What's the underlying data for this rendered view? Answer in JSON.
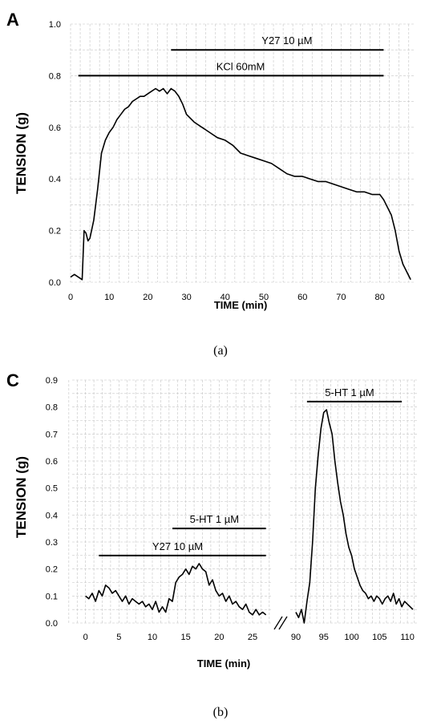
{
  "chart_data": [
    {
      "type": "line",
      "panel": "A",
      "caption": "(a)",
      "xlabel": "TIME (min)",
      "ylabel": "TENSION (g)",
      "xlim": [
        0,
        89
      ],
      "ylim": [
        0,
        1.0
      ],
      "xticks": [
        "0",
        "10",
        "20",
        "30",
        "40",
        "50",
        "60",
        "70",
        "80"
      ],
      "yticks": [
        "0.0",
        "0.2",
        "0.4",
        "0.6",
        "0.8",
        "1.0"
      ],
      "grid": true,
      "annotations": [
        {
          "label": "Y27 10 µM",
          "x_start": 26,
          "x_end": 81,
          "y": 0.9
        },
        {
          "label": "KCl 60mM",
          "x_start": 2,
          "x_end": 81,
          "y": 0.8
        }
      ],
      "series": [
        {
          "x": [
            0,
            1,
            2,
            3,
            3.5,
            4,
            4.5,
            5,
            6,
            7,
            8,
            9,
            10,
            11,
            12,
            13,
            14,
            15,
            16,
            17,
            18,
            19,
            20,
            21,
            22,
            23,
            24,
            25,
            26,
            27,
            28,
            29,
            30,
            32,
            34,
            36,
            38,
            40,
            42,
            44,
            46,
            48,
            50,
            52,
            54,
            56,
            58,
            60,
            62,
            64,
            66,
            68,
            70,
            72,
            74,
            76,
            78,
            79,
            80,
            81,
            82,
            83,
            84,
            85,
            86,
            87,
            88
          ],
          "y": [
            0.02,
            0.03,
            0.02,
            0.01,
            0.2,
            0.19,
            0.16,
            0.17,
            0.24,
            0.36,
            0.5,
            0.55,
            0.58,
            0.6,
            0.63,
            0.65,
            0.67,
            0.68,
            0.7,
            0.71,
            0.72,
            0.72,
            0.73,
            0.74,
            0.75,
            0.74,
            0.75,
            0.73,
            0.75,
            0.74,
            0.72,
            0.69,
            0.65,
            0.62,
            0.6,
            0.58,
            0.56,
            0.55,
            0.53,
            0.5,
            0.49,
            0.48,
            0.47,
            0.46,
            0.44,
            0.42,
            0.41,
            0.41,
            0.4,
            0.39,
            0.39,
            0.38,
            0.37,
            0.36,
            0.35,
            0.35,
            0.34,
            0.34,
            0.34,
            0.32,
            0.29,
            0.26,
            0.2,
            0.12,
            0.07,
            0.04,
            0.01
          ]
        }
      ]
    },
    {
      "type": "line",
      "panel": "C",
      "caption": "(b)",
      "xlabel": "TIME (min)",
      "ylabel": "TENSION (g)",
      "ylim": [
        0,
        0.9
      ],
      "yticks": [
        "0.0",
        "0.1",
        "0.2",
        "0.3",
        "0.4",
        "0.5",
        "0.6",
        "0.7",
        "0.8",
        "0.9"
      ],
      "grid": true,
      "axis_break": true,
      "segments": [
        {
          "xlim": [
            -2,
            28
          ],
          "xticks": [
            "0",
            "5",
            "10",
            "15",
            "20",
            "25"
          ]
        },
        {
          "xlim": [
            89,
            112
          ],
          "xticks": [
            "90",
            "95",
            "100",
            "105",
            "110"
          ]
        }
      ],
      "annotations": [
        {
          "label": "5-HT 1 µM",
          "x_start": 92,
          "x_end": 109,
          "y": 0.82
        },
        {
          "label": "5-HT 1 µM",
          "x_start": 13,
          "x_end": 27,
          "y": 0.35
        },
        {
          "label": "Y27 10 µM",
          "x_start": 2,
          "x_end": 27,
          "y": 0.25
        }
      ],
      "series": [
        {
          "x": [
            0,
            0.5,
            1,
            1.5,
            2,
            2.5,
            3,
            3.5,
            4,
            4.5,
            5,
            5.5,
            6,
            6.5,
            7,
            7.5,
            8,
            8.5,
            9,
            9.5,
            10,
            10.5,
            11,
            11.5,
            12,
            12.5,
            13,
            13.5,
            14,
            14.5,
            15,
            15.5,
            16,
            16.5,
            17,
            17.5,
            18,
            18.5,
            19,
            19.5,
            20,
            20.5,
            21,
            21.5,
            22,
            22.5,
            23,
            23.5,
            24,
            24.5,
            25,
            25.5,
            26,
            26.5,
            27
          ],
          "y": [
            0.1,
            0.09,
            0.11,
            0.08,
            0.12,
            0.1,
            0.14,
            0.13,
            0.11,
            0.12,
            0.1,
            0.08,
            0.1,
            0.07,
            0.09,
            0.08,
            0.07,
            0.08,
            0.06,
            0.07,
            0.05,
            0.08,
            0.04,
            0.06,
            0.04,
            0.09,
            0.08,
            0.15,
            0.17,
            0.18,
            0.2,
            0.18,
            0.21,
            0.2,
            0.22,
            0.2,
            0.19,
            0.14,
            0.16,
            0.12,
            0.1,
            0.11,
            0.08,
            0.1,
            0.07,
            0.08,
            0.06,
            0.05,
            0.07,
            0.04,
            0.03,
            0.05,
            0.03,
            0.04,
            0.03
          ]
        },
        {
          "x": [
            90,
            90.5,
            91,
            91.5,
            92,
            92.5,
            93,
            93.5,
            94,
            94.5,
            95,
            95.5,
            96,
            96.5,
            97,
            97.5,
            98,
            98.5,
            99,
            99.5,
            100,
            100.5,
            101,
            101.5,
            102,
            102.5,
            103,
            103.5,
            104,
            104.5,
            105,
            105.5,
            106,
            106.5,
            107,
            107.5,
            108,
            108.5,
            109,
            109.5,
            110,
            110.5,
            111
          ],
          "y": [
            0.04,
            0.02,
            0.05,
            0.0,
            0.08,
            0.15,
            0.3,
            0.5,
            0.62,
            0.72,
            0.78,
            0.79,
            0.74,
            0.7,
            0.6,
            0.52,
            0.45,
            0.4,
            0.33,
            0.28,
            0.25,
            0.2,
            0.17,
            0.14,
            0.12,
            0.11,
            0.09,
            0.1,
            0.08,
            0.1,
            0.09,
            0.07,
            0.09,
            0.1,
            0.08,
            0.11,
            0.07,
            0.09,
            0.06,
            0.08,
            0.07,
            0.06,
            0.05
          ]
        }
      ]
    }
  ]
}
